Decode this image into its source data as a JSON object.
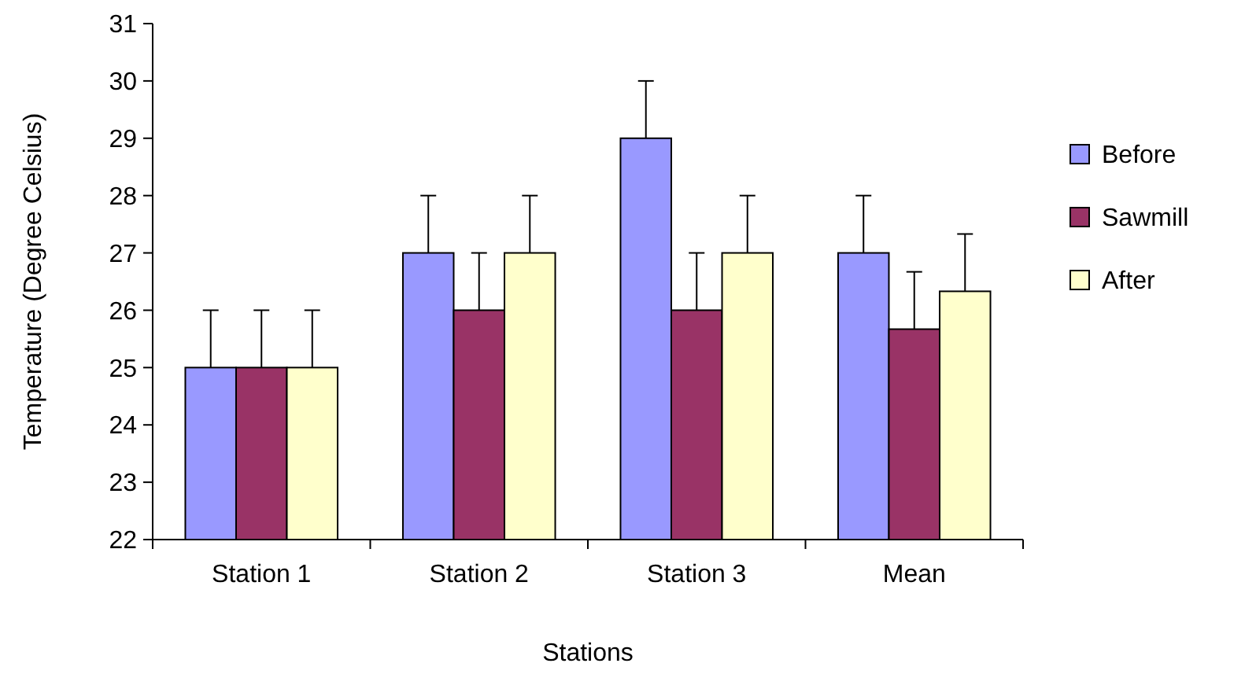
{
  "chart_data": {
    "type": "bar",
    "xlabel": "Stations",
    "ylabel": "Temperature (Degree Celsius)",
    "categories": [
      "Station 1",
      "Station 2",
      "Station 3",
      "Mean"
    ],
    "series": [
      {
        "name": "Before",
        "color": "#9999ff",
        "values": [
          25,
          27,
          29,
          27
        ],
        "errors": [
          [
            25,
            26
          ],
          [
            27,
            28
          ],
          [
            29,
            30
          ],
          [
            27,
            28
          ]
        ]
      },
      {
        "name": "Sawmill",
        "color": "#993366",
        "values": [
          25,
          26,
          26,
          25.67
        ],
        "errors": [
          [
            25,
            26
          ],
          [
            26,
            27
          ],
          [
            26,
            27
          ],
          [
            25.67,
            26.67
          ]
        ]
      },
      {
        "name": "After",
        "color": "#ffffcc",
        "values": [
          25,
          27,
          27,
          26.33
        ],
        "errors": [
          [
            25,
            26
          ],
          [
            27,
            28
          ],
          [
            27,
            28
          ],
          [
            26.33,
            27.33
          ]
        ]
      }
    ],
    "ylim": [
      22,
      31
    ],
    "yticks": [
      22,
      23,
      24,
      25,
      26,
      27,
      28,
      29,
      30,
      31
    ],
    "grid": false,
    "legend": "right"
  }
}
